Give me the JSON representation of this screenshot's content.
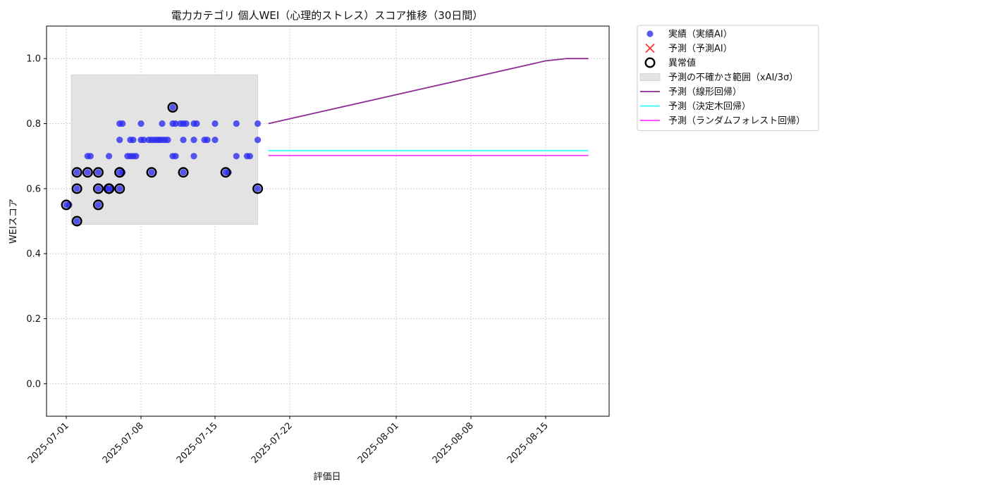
{
  "chart_data": {
    "type": "scatter",
    "title": "電力カテゴリ 個人WEI（心理的ストレス）スコア推移（30日間）",
    "xlabel": "評価日",
    "ylabel": "WEIスコア",
    "x_axis": {
      "type": "date",
      "range": [
        "2024-12-29",
        "2025-08-25"
      ],
      "ticks": [
        "2025-07-01",
        "2025-07-08",
        "2025-07-15",
        "2025-07-22",
        "2025-08-01",
        "2025-08-08",
        "2025-08-15"
      ]
    },
    "ylim": [
      -0.1,
      1.1
    ],
    "y_ticks": [
      0.0,
      0.2,
      0.4,
      0.6,
      0.8,
      1.0
    ],
    "y_tick_labels": [
      "0.0",
      "0.2",
      "0.4",
      "0.6",
      "0.8",
      "1.0"
    ],
    "grid": true,
    "legend_position": "outside-upper-right",
    "colors": {
      "actual": "#2a2af0",
      "predicted": "#ff3333",
      "anomaly": "#000000",
      "uncertainty": "#e3e3e3",
      "linear": "#8e2c95",
      "tree": "#33ffff",
      "forest": "#ff33ff"
    },
    "legend": [
      {
        "key": "actual",
        "label": "実績（実績AI）",
        "marker": "dot"
      },
      {
        "key": "predicted",
        "label": "予測（予測AI）",
        "marker": "cross"
      },
      {
        "key": "anomaly",
        "label": "異常値",
        "marker": "ring"
      },
      {
        "key": "uncertainty",
        "label": "予測の不確かさ範囲（xAI/3σ）",
        "marker": "box"
      },
      {
        "key": "linear",
        "label": "予測（線形回帰）",
        "marker": "line"
      },
      {
        "key": "tree",
        "label": "予測（決定木回帰）",
        "marker": "line"
      },
      {
        "key": "forest",
        "label": "予測（ランダムフォレスト回帰）",
        "marker": "line"
      }
    ],
    "uncertainty_band": {
      "x_start": "2025-07-01",
      "x_end": "2025-07-19",
      "y_low": 0.49,
      "y_high": 0.95
    },
    "series": [
      {
        "type": "scatter",
        "points": [
          [
            "2025-07-01",
            0.55
          ],
          [
            "2025-07-01",
            0.55
          ],
          [
            "2025-07-02",
            0.65
          ],
          [
            "2025-07-02",
            0.6
          ],
          [
            "2025-07-02",
            0.5
          ],
          [
            "2025-07-03",
            0.65
          ],
          [
            "2025-07-03",
            0.7
          ],
          [
            "2025-07-03",
            0.7
          ],
          [
            "2025-07-04",
            0.55
          ],
          [
            "2025-07-04",
            0.6
          ],
          [
            "2025-07-04",
            0.65
          ],
          [
            "2025-07-05",
            0.6
          ],
          [
            "2025-07-05",
            0.6
          ],
          [
            "2025-07-05",
            0.6
          ],
          [
            "2025-07-05",
            0.7
          ],
          [
            "2025-07-06",
            0.65
          ],
          [
            "2025-07-06",
            0.65
          ],
          [
            "2025-07-06",
            0.6
          ],
          [
            "2025-07-06",
            0.8
          ],
          [
            "2025-07-06",
            0.8
          ],
          [
            "2025-07-06",
            0.75
          ],
          [
            "2025-07-07",
            0.75
          ],
          [
            "2025-07-07",
            0.75
          ],
          [
            "2025-07-07",
            0.7
          ],
          [
            "2025-07-07",
            0.7
          ],
          [
            "2025-07-07",
            0.7
          ],
          [
            "2025-07-07",
            0.7
          ],
          [
            "2025-07-08",
            0.8
          ],
          [
            "2025-07-08",
            0.75
          ],
          [
            "2025-07-08",
            0.75
          ],
          [
            "2025-07-09",
            0.75
          ],
          [
            "2025-07-09",
            0.65
          ],
          [
            "2025-07-09",
            0.75
          ],
          [
            "2025-07-09",
            0.75
          ],
          [
            "2025-07-09",
            0.75
          ],
          [
            "2025-07-10",
            0.75
          ],
          [
            "2025-07-10",
            0.8
          ],
          [
            "2025-07-10",
            0.75
          ],
          [
            "2025-07-10",
            0.75
          ],
          [
            "2025-07-10",
            0.75
          ],
          [
            "2025-07-11",
            0.85
          ],
          [
            "2025-07-11",
            0.7
          ],
          [
            "2025-07-11",
            0.8
          ],
          [
            "2025-07-11",
            0.8
          ],
          [
            "2025-07-11",
            0.7
          ],
          [
            "2025-07-12",
            0.65
          ],
          [
            "2025-07-12",
            0.75
          ],
          [
            "2025-07-12",
            0.8
          ],
          [
            "2025-07-12",
            0.8
          ],
          [
            "2025-07-12",
            0.8
          ],
          [
            "2025-07-13",
            0.8
          ],
          [
            "2025-07-13",
            0.75
          ],
          [
            "2025-07-13",
            0.8
          ],
          [
            "2025-07-13",
            0.7
          ],
          [
            "2025-07-14",
            0.75
          ],
          [
            "2025-07-14",
            0.75
          ],
          [
            "2025-07-15",
            0.8
          ],
          [
            "2025-07-15",
            0.75
          ],
          [
            "2025-07-16",
            0.65
          ],
          [
            "2025-07-16",
            0.65
          ],
          [
            "2025-07-17",
            0.8
          ],
          [
            "2025-07-17",
            0.7
          ],
          [
            "2025-07-18",
            0.7
          ],
          [
            "2025-07-18",
            0.7
          ],
          [
            "2025-07-19",
            0.6
          ],
          [
            "2025-07-19",
            0.8
          ],
          [
            "2025-07-19",
            0.75
          ]
        ]
      },
      {
        "type": "anomaly",
        "points": [
          [
            "2025-07-01",
            0.55
          ],
          [
            "2025-07-02",
            0.65
          ],
          [
            "2025-07-02",
            0.6
          ],
          [
            "2025-07-02",
            0.5
          ],
          [
            "2025-07-03",
            0.65
          ],
          [
            "2025-07-04",
            0.55
          ],
          [
            "2025-07-04",
            0.65
          ],
          [
            "2025-07-04",
            0.6
          ],
          [
            "2025-07-05",
            0.6
          ],
          [
            "2025-07-05",
            0.6
          ],
          [
            "2025-07-06",
            0.65
          ],
          [
            "2025-07-06",
            0.65
          ],
          [
            "2025-07-06",
            0.6
          ],
          [
            "2025-07-09",
            0.65
          ],
          [
            "2025-07-11",
            0.85
          ],
          [
            "2025-07-12",
            0.65
          ],
          [
            "2025-07-16",
            0.65
          ],
          [
            "2025-07-19",
            0.6
          ]
        ]
      },
      {
        "type": "line",
        "points": [
          [
            "2025-07-20",
            0.8
          ],
          [
            "2025-08-15",
            0.993
          ],
          [
            "2025-08-17",
            1.0
          ],
          [
            "2025-08-19",
            1.0
          ]
        ]
      },
      {
        "type": "line",
        "points": [
          [
            "2025-07-20",
            0.717
          ],
          [
            "2025-08-19",
            0.717
          ]
        ]
      },
      {
        "type": "line",
        "points": [
          [
            "2025-07-20",
            0.702
          ],
          [
            "2025-08-19",
            0.702
          ]
        ]
      }
    ]
  }
}
